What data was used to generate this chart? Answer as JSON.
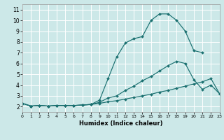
{
  "xlabel": "Humidex (Indice chaleur)",
  "xlim": [
    0,
    23
  ],
  "ylim": [
    1.5,
    11.5
  ],
  "xticks": [
    0,
    1,
    2,
    3,
    4,
    5,
    6,
    7,
    8,
    9,
    10,
    11,
    12,
    13,
    14,
    15,
    16,
    17,
    18,
    19,
    20,
    21,
    22,
    23
  ],
  "yticks": [
    2,
    3,
    4,
    5,
    6,
    7,
    8,
    9,
    10,
    11
  ],
  "bg_color": "#cce8e8",
  "grid_color": "#ffffff",
  "line_color": "#1a7070",
  "curve_top_x": [
    0,
    1,
    2,
    3,
    4,
    5,
    6,
    7,
    8,
    9,
    10,
    11,
    12,
    13,
    14,
    15,
    16,
    17,
    18,
    19,
    20,
    21
  ],
  "curve_top_y": [
    2.3,
    2.05,
    2.1,
    2.05,
    2.1,
    2.1,
    2.1,
    2.15,
    2.2,
    2.6,
    4.6,
    6.6,
    7.9,
    8.3,
    8.5,
    10.0,
    10.6,
    10.6,
    10.0,
    9.0,
    7.2,
    7.0
  ],
  "curve_mid_x": [
    0,
    1,
    2,
    3,
    4,
    5,
    6,
    7,
    8,
    9,
    10,
    11,
    12,
    13,
    14,
    15,
    16,
    17,
    18,
    19,
    20,
    21,
    22,
    23
  ],
  "curve_mid_y": [
    2.3,
    2.05,
    2.1,
    2.05,
    2.1,
    2.1,
    2.1,
    2.15,
    2.2,
    2.4,
    2.8,
    3.0,
    3.5,
    3.9,
    4.4,
    4.8,
    5.3,
    5.8,
    6.2,
    6.0,
    4.5,
    3.6,
    4.0,
    3.2
  ],
  "curve_low_x": [
    0,
    1,
    2,
    3,
    4,
    5,
    6,
    7,
    8,
    9,
    10,
    11,
    12,
    13,
    14,
    15,
    16,
    17,
    18,
    19,
    20,
    21,
    22,
    23
  ],
  "curve_low_y": [
    2.3,
    2.05,
    2.1,
    2.05,
    2.1,
    2.1,
    2.1,
    2.15,
    2.2,
    2.3,
    2.45,
    2.55,
    2.7,
    2.85,
    3.0,
    3.15,
    3.35,
    3.5,
    3.7,
    3.9,
    4.1,
    4.3,
    4.6,
    3.2
  ]
}
